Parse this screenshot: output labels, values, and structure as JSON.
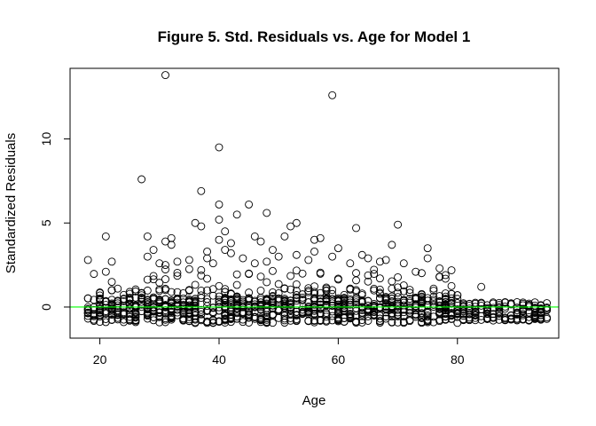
{
  "chart_data": {
    "type": "scatter",
    "title": "Figure 5. Std. Residuals vs. Age for Model 1",
    "xlabel": "Age",
    "ylabel": "Standardized Residuals",
    "xlim": [
      15,
      97
    ],
    "ylim": [
      -1.85,
      14.2
    ],
    "xticks": [
      20,
      40,
      60,
      80
    ],
    "yticks": [
      0,
      5,
      10
    ],
    "grid": false,
    "marker": "open-circle",
    "point_color": "#000000",
    "reference_line": {
      "y": 0,
      "color": "#00ff00"
    },
    "outliers": [
      {
        "x": 18,
        "y": 2.8
      },
      {
        "x": 21,
        "y": 4.2
      },
      {
        "x": 21,
        "y": 2.1
      },
      {
        "x": 22,
        "y": 2.7
      },
      {
        "x": 27,
        "y": 7.6
      },
      {
        "x": 28,
        "y": 4.2
      },
      {
        "x": 28,
        "y": 3.0
      },
      {
        "x": 29,
        "y": 3.4
      },
      {
        "x": 30,
        "y": 2.6
      },
      {
        "x": 31,
        "y": 13.8
      },
      {
        "x": 31,
        "y": 3.9
      },
      {
        "x": 31,
        "y": 2.5
      },
      {
        "x": 32,
        "y": 4.1
      },
      {
        "x": 32,
        "y": 3.7
      },
      {
        "x": 33,
        "y": 2.7
      },
      {
        "x": 35,
        "y": 2.8
      },
      {
        "x": 36,
        "y": 5.0
      },
      {
        "x": 37,
        "y": 6.9
      },
      {
        "x": 37,
        "y": 4.8
      },
      {
        "x": 38,
        "y": 3.3
      },
      {
        "x": 38,
        "y": 2.9
      },
      {
        "x": 39,
        "y": 2.6
      },
      {
        "x": 40,
        "y": 9.5
      },
      {
        "x": 40,
        "y": 6.1
      },
      {
        "x": 40,
        "y": 5.2
      },
      {
        "x": 40,
        "y": 4.0
      },
      {
        "x": 41,
        "y": 3.4
      },
      {
        "x": 41,
        "y": 4.5
      },
      {
        "x": 42,
        "y": 3.8
      },
      {
        "x": 42,
        "y": 3.2
      },
      {
        "x": 43,
        "y": 5.5
      },
      {
        "x": 44,
        "y": 2.9
      },
      {
        "x": 45,
        "y": 6.1
      },
      {
        "x": 46,
        "y": 4.2
      },
      {
        "x": 46,
        "y": 2.6
      },
      {
        "x": 47,
        "y": 3.9
      },
      {
        "x": 48,
        "y": 5.6
      },
      {
        "x": 48,
        "y": 2.7
      },
      {
        "x": 49,
        "y": 3.4
      },
      {
        "x": 50,
        "y": 3.0
      },
      {
        "x": 51,
        "y": 4.2
      },
      {
        "x": 52,
        "y": 4.8
      },
      {
        "x": 53,
        "y": 5.0
      },
      {
        "x": 53,
        "y": 3.1
      },
      {
        "x": 55,
        "y": 2.8
      },
      {
        "x": 56,
        "y": 4.0
      },
      {
        "x": 56,
        "y": 3.3
      },
      {
        "x": 57,
        "y": 4.1
      },
      {
        "x": 59,
        "y": 12.6
      },
      {
        "x": 59,
        "y": 3.0
      },
      {
        "x": 60,
        "y": 3.5
      },
      {
        "x": 62,
        "y": 2.6
      },
      {
        "x": 63,
        "y": 4.7
      },
      {
        "x": 64,
        "y": 3.1
      },
      {
        "x": 65,
        "y": 2.9
      },
      {
        "x": 67,
        "y": 2.7
      },
      {
        "x": 68,
        "y": 2.8
      },
      {
        "x": 69,
        "y": 3.7
      },
      {
        "x": 70,
        "y": 4.9
      },
      {
        "x": 71,
        "y": 2.6
      },
      {
        "x": 73,
        "y": 2.1
      },
      {
        "x": 75,
        "y": 3.5
      },
      {
        "x": 75,
        "y": 2.9
      },
      {
        "x": 77,
        "y": 2.3
      },
      {
        "x": 78,
        "y": 1.9
      },
      {
        "x": 84,
        "y": 1.2
      }
    ],
    "dense_band": {
      "x_range": [
        18,
        95
      ],
      "y_median": -0.2,
      "y_lower": -1.2,
      "y_upper": 2.3,
      "point_count": 1150
    }
  }
}
